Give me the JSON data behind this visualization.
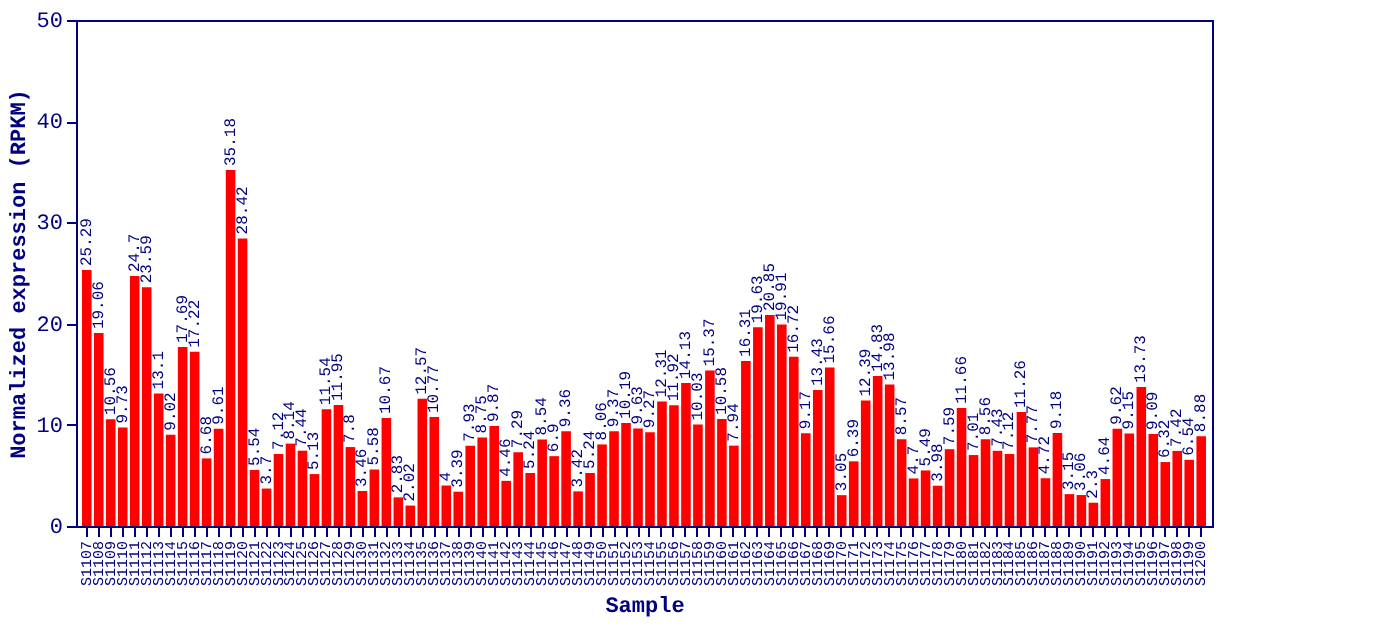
{
  "chart_data": {
    "type": "bar",
    "xlabel": "Sample",
    "ylabel": "Normalized expression (RPKM)",
    "categories": [
      "S1107",
      "S1108",
      "S1109",
      "S1110",
      "S1111",
      "S1112",
      "S1113",
      "S1114",
      "S1115",
      "S1116",
      "S1117",
      "S1118",
      "S1119",
      "S1120",
      "S1121",
      "S1122",
      "S1123",
      "S1124",
      "S1125",
      "S1126",
      "S1127",
      "S1128",
      "S1129",
      "S1130",
      "S1131",
      "S1132",
      "S1133",
      "S1134",
      "S1135",
      "S1136",
      "S1137",
      "S1138",
      "S1139",
      "S1140",
      "S1141",
      "S1142",
      "S1143",
      "S1144",
      "S1145",
      "S1146",
      "S1147",
      "S1148",
      "S1149",
      "S1150",
      "S1151",
      "S1152",
      "S1153",
      "S1154",
      "S1155",
      "S1156",
      "S1157",
      "S1158",
      "S1159",
      "S1160",
      "S1161",
      "S1162",
      "S1163",
      "S1164",
      "S1165",
      "S1166",
      "S1167",
      "S1168",
      "S1169",
      "S1170",
      "S1171",
      "S1172",
      "S1173",
      "S1174",
      "S1175",
      "S1176",
      "S1177",
      "S1178",
      "S1179",
      "S1180",
      "S1181",
      "S1182",
      "S1183",
      "S1184",
      "S1185",
      "S1186",
      "S1187",
      "S1188",
      "S1189",
      "S1190",
      "S1191",
      "S1192",
      "S1193",
      "S1194",
      "S1195",
      "S1196",
      "S1197",
      "S1198",
      "S1199",
      "S1200"
    ],
    "values": [
      25.29,
      19.06,
      10.56,
      9.73,
      24.7,
      23.59,
      13.1,
      9.02,
      17.69,
      17.22,
      6.68,
      9.61,
      35.18,
      28.42,
      5.54,
      3.7,
      7.12,
      8.14,
      7.44,
      5.13,
      11.54,
      11.95,
      7.8,
      3.46,
      5.58,
      10.67,
      2.83,
      2.02,
      12.57,
      10.77,
      4,
      3.39,
      7.93,
      8.75,
      9.87,
      4.46,
      7.29,
      5.24,
      8.54,
      6.9,
      9.36,
      3.42,
      5.24,
      8.06,
      9.37,
      10.19,
      9.63,
      9.27,
      12.31,
      11.92,
      14.13,
      10.03,
      15.37,
      10.58,
      7.94,
      16.31,
      19.63,
      20.85,
      19.91,
      16.72,
      9.17,
      13.43,
      15.66,
      3.05,
      6.39,
      12.39,
      14.83,
      13.98,
      8.57,
      4.7,
      5.49,
      3.98,
      7.59,
      11.66,
      7.01,
      8.56,
      7.43,
      7.12,
      11.26,
      7.77,
      4.72,
      9.18,
      3.15,
      3.06,
      2.3,
      4.64,
      9.62,
      9.15,
      13.73,
      9.09,
      6.32,
      7.42,
      6.54,
      8.88
    ],
    "color": "#ff0000",
    "data_labels": true,
    "ylim": [
      0,
      50
    ],
    "yticks": [
      0,
      10,
      20,
      30,
      40,
      50
    ],
    "grid": false
  }
}
